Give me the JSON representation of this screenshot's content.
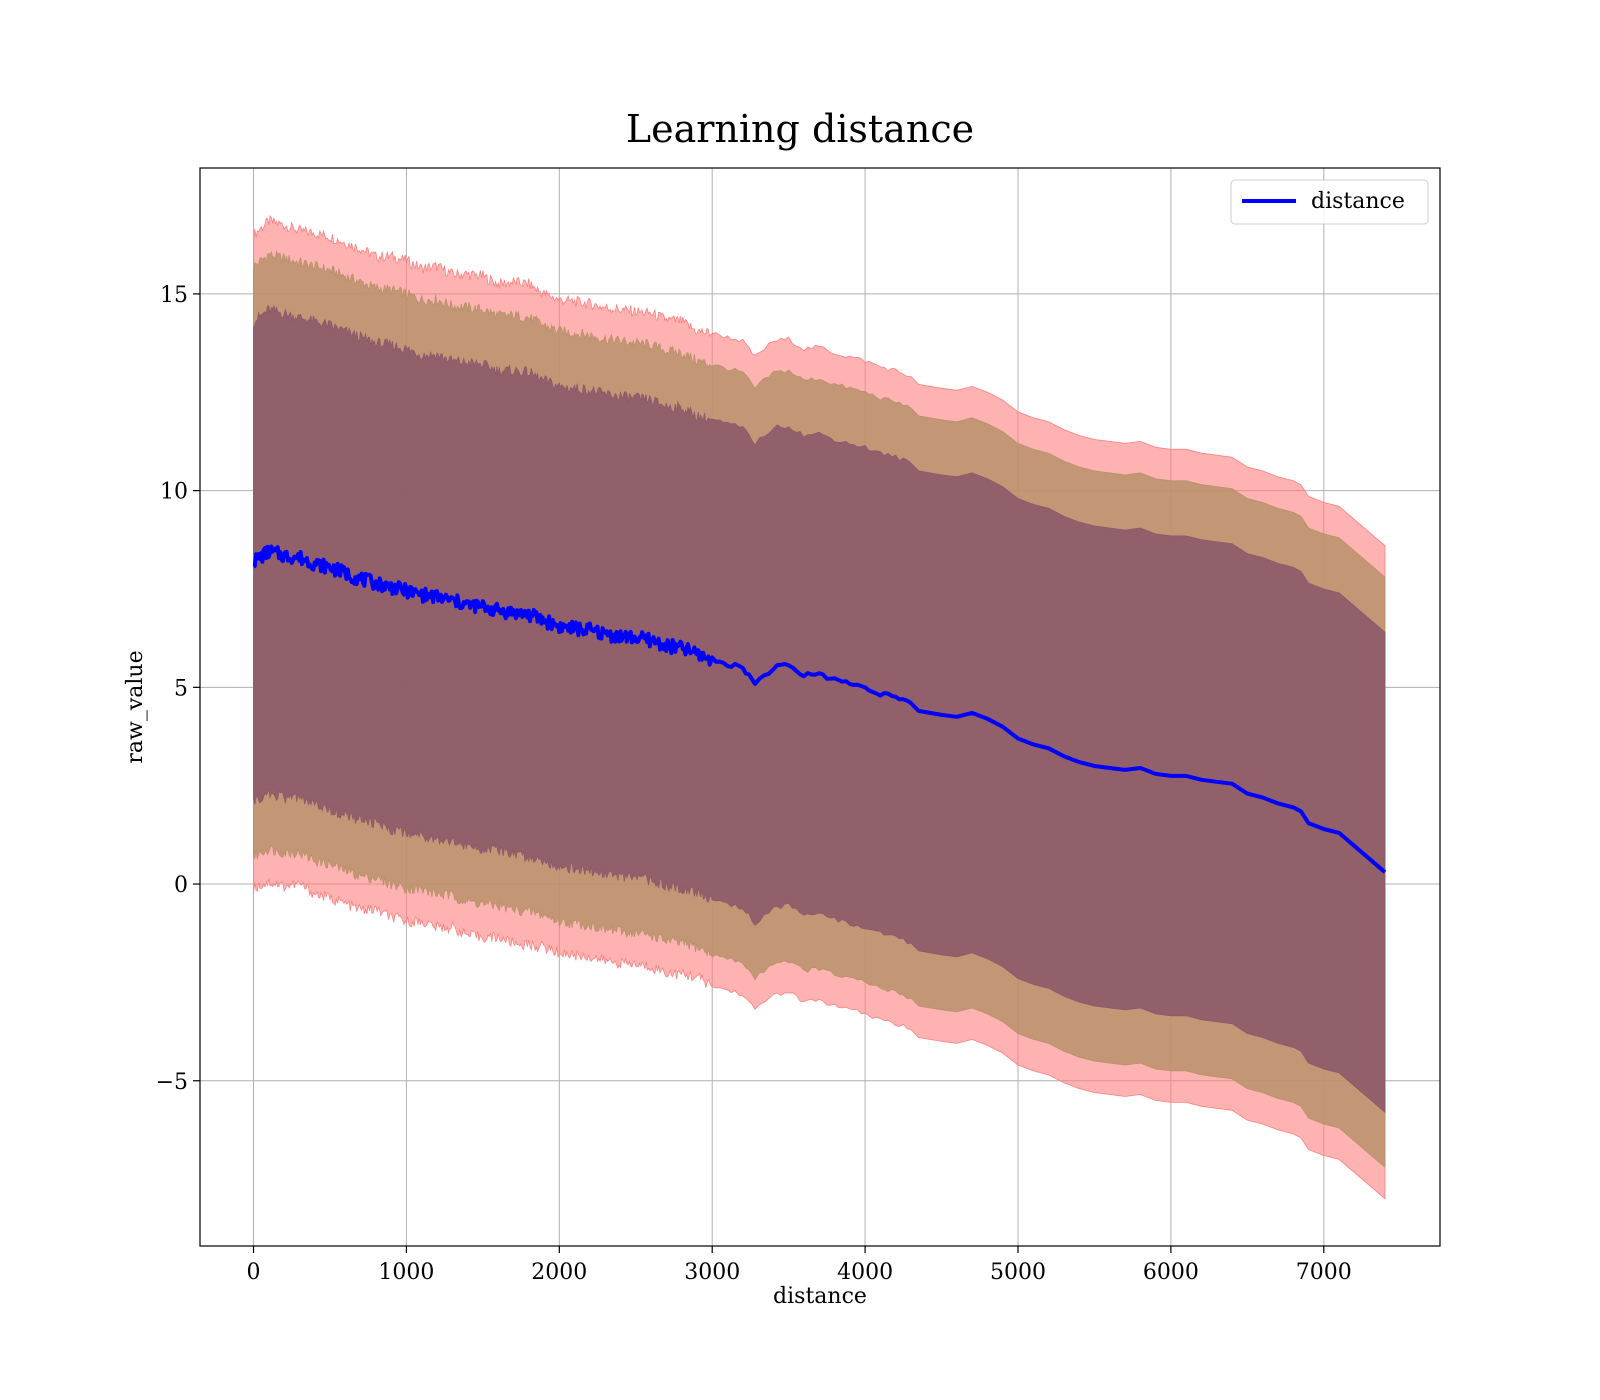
{
  "chart_data": {
    "type": "line",
    "title": "Learning distance",
    "xlabel": "distance",
    "ylabel": "raw_value",
    "xlim": [
      -350,
      7760
    ],
    "ylim": [
      -9.2,
      18.2
    ],
    "x_ticks": [
      0,
      1000,
      2000,
      3000,
      4000,
      5000,
      6000,
      7000
    ],
    "y_ticks": [
      -5,
      0,
      5,
      10,
      15
    ],
    "y_tick_labels": [
      "−5",
      "0",
      "5",
      "10",
      "15"
    ],
    "grid": true,
    "legend": {
      "position": "top-right",
      "entries": [
        "distance"
      ]
    },
    "colors": {
      "line": "#0000ff",
      "band_outer": "#ff7f7f",
      "band_middle": "#b8926a",
      "band_inner": "#8c5a6a",
      "grid": "#b0b0b0"
    },
    "series": [
      {
        "name": "distance",
        "x": [
          0,
          100,
          200,
          300,
          400,
          500,
          600,
          700,
          800,
          900,
          1000,
          1100,
          1200,
          1300,
          1400,
          1500,
          1600,
          1700,
          1800,
          1900,
          2000,
          2100,
          2200,
          2300,
          2400,
          2500,
          2600,
          2700,
          2800,
          2900,
          3000,
          3100,
          3200,
          3280,
          3400,
          3500,
          3600,
          3700,
          3800,
          3900,
          4000,
          4100,
          4200,
          4300,
          4350,
          4500,
          4600,
          4700,
          4800,
          4900,
          5000,
          5100,
          5200,
          5300,
          5400,
          5500,
          5600,
          5700,
          5800,
          5900,
          6000,
          6100,
          6200,
          6300,
          6400,
          6500,
          6600,
          6700,
          6800,
          6850,
          6900,
          7000,
          7100,
          7400
        ],
        "mean": [
          8.2,
          8.45,
          8.35,
          8.3,
          8.15,
          8.05,
          7.9,
          7.75,
          7.65,
          7.55,
          7.45,
          7.35,
          7.3,
          7.2,
          7.1,
          7.05,
          6.95,
          6.9,
          6.85,
          6.7,
          6.55,
          6.5,
          6.45,
          6.35,
          6.3,
          6.25,
          6.2,
          6.05,
          6.0,
          5.85,
          5.7,
          5.6,
          5.5,
          5.1,
          5.5,
          5.55,
          5.3,
          5.35,
          5.2,
          5.1,
          5.0,
          4.85,
          4.75,
          4.6,
          4.4,
          4.3,
          4.25,
          4.35,
          4.2,
          4.0,
          3.7,
          3.55,
          3.45,
          3.25,
          3.1,
          3.0,
          2.95,
          2.9,
          2.95,
          2.8,
          2.75,
          2.75,
          2.65,
          2.6,
          2.55,
          2.3,
          2.2,
          2.05,
          1.95,
          1.85,
          1.55,
          1.4,
          1.3,
          0.3
        ]
      }
    ],
    "bands": [
      {
        "role": "outer",
        "half_width": [
          8.3,
          8.4,
          8.4,
          8.3,
          8.4,
          8.4,
          8.4,
          8.4,
          8.3,
          8.4,
          8.4,
          8.3,
          8.4,
          8.3,
          8.4,
          8.4,
          8.3,
          8.4,
          8.4,
          8.3,
          8.3,
          8.3,
          8.3,
          8.3,
          8.3,
          8.3,
          8.3,
          8.3,
          8.3,
          8.2,
          8.3,
          8.3,
          8.3,
          8.3,
          8.3,
          8.3,
          8.3,
          8.3,
          8.3,
          8.3,
          8.3,
          8.3,
          8.3,
          8.3,
          8.3,
          8.3,
          8.3,
          8.3,
          8.3,
          8.3,
          8.3,
          8.3,
          8.3,
          8.3,
          8.3,
          8.3,
          8.3,
          8.3,
          8.3,
          8.3,
          8.3,
          8.3,
          8.3,
          8.3,
          8.3,
          8.3,
          8.3,
          8.3,
          8.3,
          8.3,
          8.3,
          8.3,
          8.3,
          8.3
        ]
      },
      {
        "role": "middle",
        "half_width": [
          7.5,
          7.55,
          7.55,
          7.5,
          7.55,
          7.55,
          7.55,
          7.55,
          7.5,
          7.55,
          7.55,
          7.5,
          7.55,
          7.5,
          7.55,
          7.55,
          7.5,
          7.55,
          7.55,
          7.5,
          7.5,
          7.5,
          7.5,
          7.5,
          7.5,
          7.5,
          7.5,
          7.5,
          7.5,
          7.45,
          7.5,
          7.5,
          7.5,
          7.5,
          7.5,
          7.5,
          7.5,
          7.5,
          7.5,
          7.5,
          7.5,
          7.5,
          7.5,
          7.5,
          7.5,
          7.5,
          7.5,
          7.5,
          7.5,
          7.5,
          7.5,
          7.5,
          7.5,
          7.5,
          7.5,
          7.5,
          7.5,
          7.5,
          7.5,
          7.5,
          7.5,
          7.5,
          7.5,
          7.5,
          7.5,
          7.5,
          7.5,
          7.5,
          7.5,
          7.5,
          7.5,
          7.5,
          7.5,
          7.5
        ]
      },
      {
        "role": "inner",
        "half_width": [
          6.1,
          6.15,
          6.15,
          6.1,
          6.15,
          6.15,
          6.15,
          6.15,
          6.1,
          6.15,
          6.15,
          6.1,
          6.15,
          6.1,
          6.15,
          6.15,
          6.1,
          6.15,
          6.15,
          6.1,
          6.1,
          6.1,
          6.1,
          6.1,
          6.1,
          6.1,
          6.1,
          6.1,
          6.1,
          6.05,
          6.1,
          6.1,
          6.1,
          6.1,
          6.1,
          6.1,
          6.1,
          6.1,
          6.1,
          6.1,
          6.1,
          6.1,
          6.1,
          6.1,
          6.1,
          6.1,
          6.1,
          6.1,
          6.1,
          6.1,
          6.1,
          6.1,
          6.1,
          6.1,
          6.1,
          6.1,
          6.1,
          6.1,
          6.1,
          6.1,
          6.1,
          6.1,
          6.1,
          6.1,
          6.1,
          6.1,
          6.1,
          6.1,
          6.1,
          6.1,
          6.1,
          6.1,
          6.1,
          6.1
        ]
      }
    ]
  }
}
